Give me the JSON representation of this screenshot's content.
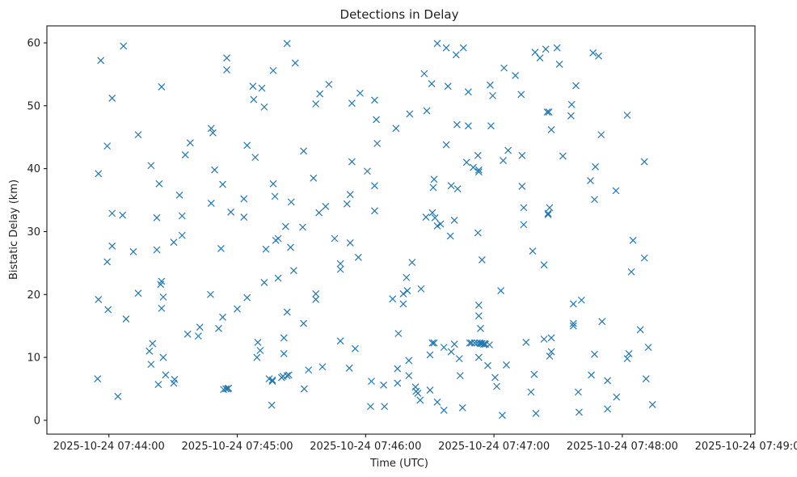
{
  "chart_data": {
    "type": "scatter",
    "title": "Detections in Delay",
    "xlabel": "Time (UTC)",
    "ylabel": "Bistatic Delay (km)",
    "marker": "x",
    "color": "#1f77b4",
    "x_unit": "seconds after 2025-10-24 07:44:00",
    "xlim": [
      -29,
      302
    ],
    "ylim": [
      -2.2,
      62.7
    ],
    "x_ticks": [
      {
        "value": 0,
        "label": "2025-10-24 07:44:00"
      },
      {
        "value": 60,
        "label": "2025-10-24 07:45:00"
      },
      {
        "value": 120,
        "label": "2025-10-24 07:46:00"
      },
      {
        "value": 180,
        "label": "2025-10-24 07:47:00"
      },
      {
        "value": 240,
        "label": "2025-10-24 07:48:00"
      },
      {
        "value": 300,
        "label": "2025-10-24 07:49:00"
      }
    ],
    "y_ticks": [
      {
        "value": 0,
        "label": "0"
      },
      {
        "value": 10,
        "label": "10"
      },
      {
        "value": 20,
        "label": "20"
      },
      {
        "value": 30,
        "label": "30"
      },
      {
        "value": 40,
        "label": "40"
      },
      {
        "value": 50,
        "label": "50"
      },
      {
        "value": 60,
        "label": "60"
      }
    ],
    "points": [
      [
        -5.3,
        6.6
      ],
      [
        -4.9,
        39.2
      ],
      [
        -4.9,
        19.2
      ],
      [
        -3.8,
        57.2
      ],
      [
        -0.4,
        17.6
      ],
      [
        -0.8,
        43.6
      ],
      [
        -0.8,
        25.2
      ],
      [
        1.5,
        51.2
      ],
      [
        1.5,
        32.9
      ],
      [
        1.5,
        27.7
      ],
      [
        4.2,
        3.8
      ],
      [
        6.8,
        59.5
      ],
      [
        6.4,
        32.6
      ],
      [
        8.0,
        16.1
      ],
      [
        11.4,
        26.8
      ],
      [
        13.7,
        45.4
      ],
      [
        13.7,
        20.2
      ],
      [
        18.9,
        11.0
      ],
      [
        19.7,
        40.5
      ],
      [
        19.7,
        8.9
      ],
      [
        20.4,
        12.2
      ],
      [
        22.4,
        32.2
      ],
      [
        22.4,
        27.1
      ],
      [
        23.1,
        5.7
      ],
      [
        23.5,
        37.6
      ],
      [
        24.2,
        21.6
      ],
      [
        24.6,
        53.0
      ],
      [
        24.6,
        22.1
      ],
      [
        24.6,
        17.8
      ],
      [
        25.4,
        19.6
      ],
      [
        25.4,
        10.0
      ],
      [
        26.5,
        7.2
      ],
      [
        30.3,
        5.9
      ],
      [
        30.3,
        28.3
      ],
      [
        30.7,
        6.5
      ],
      [
        33.0,
        35.8
      ],
      [
        34.2,
        32.5
      ],
      [
        34.2,
        29.4
      ],
      [
        35.7,
        42.2
      ],
      [
        36.8,
        13.7
      ],
      [
        38.0,
        44.1
      ],
      [
        41.8,
        13.4
      ],
      [
        42.5,
        14.8
      ],
      [
        47.5,
        20.0
      ],
      [
        47.8,
        46.4
      ],
      [
        47.8,
        34.5
      ],
      [
        48.6,
        45.7
      ],
      [
        49.4,
        39.8
      ],
      [
        51.3,
        14.6
      ],
      [
        52.4,
        27.3
      ],
      [
        53.2,
        37.5
      ],
      [
        53.2,
        16.4
      ],
      [
        53.6,
        4.9
      ],
      [
        54.7,
        5.0
      ],
      [
        55.1,
        57.6
      ],
      [
        55.1,
        55.7
      ],
      [
        55.5,
        5.0
      ],
      [
        55.9,
        5.1
      ],
      [
        57.0,
        33.1
      ],
      [
        60.0,
        17.7
      ],
      [
        63.1,
        35.2
      ],
      [
        63.1,
        32.3
      ],
      [
        64.6,
        43.7
      ],
      [
        64.6,
        19.5
      ],
      [
        67.3,
        53.1
      ],
      [
        67.7,
        51.0
      ],
      [
        68.4,
        41.8
      ],
      [
        69.2,
        10.0
      ],
      [
        69.6,
        12.4
      ],
      [
        70.7,
        11.1
      ],
      [
        71.5,
        52.8
      ],
      [
        72.6,
        21.9
      ],
      [
        72.6,
        49.8
      ],
      [
        73.4,
        27.2
      ],
      [
        74.9,
        6.6
      ],
      [
        76.1,
        2.4
      ],
      [
        76.4,
        6.4
      ],
      [
        76.4,
        6.2
      ],
      [
        76.8,
        37.6
      ],
      [
        76.8,
        55.6
      ],
      [
        77.6,
        35.6
      ],
      [
        78.0,
        28.6
      ],
      [
        79.1,
        28.9
      ],
      [
        79.1,
        22.6
      ],
      [
        80.7,
        6.8
      ],
      [
        81.4,
        7.0
      ],
      [
        81.8,
        13.1
      ],
      [
        81.8,
        10.6
      ],
      [
        82.6,
        30.8
      ],
      [
        83.3,
        17.2
      ],
      [
        83.3,
        7.1
      ],
      [
        83.3,
        59.9
      ],
      [
        84.1,
        7.2
      ],
      [
        84.9,
        27.5
      ],
      [
        85.2,
        34.7
      ],
      [
        86.4,
        23.8
      ],
      [
        87.1,
        56.8
      ],
      [
        90.6,
        30.7
      ],
      [
        91.0,
        42.8
      ],
      [
        91.0,
        15.4
      ],
      [
        91.3,
        5.0
      ],
      [
        93.3,
        8.0
      ],
      [
        95.6,
        38.5
      ],
      [
        96.7,
        50.3
      ],
      [
        96.7,
        20.1
      ],
      [
        96.7,
        19.2
      ],
      [
        98.2,
        33.0
      ],
      [
        98.6,
        51.9
      ],
      [
        99.8,
        8.5
      ],
      [
        101.3,
        34.0
      ],
      [
        102.8,
        53.4
      ],
      [
        105.5,
        28.9
      ],
      [
        108.2,
        24.9
      ],
      [
        108.2,
        12.6
      ],
      [
        108.2,
        24.0
      ],
      [
        111.3,
        34.4
      ],
      [
        112.4,
        8.3
      ],
      [
        112.8,
        28.2
      ],
      [
        112.8,
        35.9
      ],
      [
        113.6,
        41.1
      ],
      [
        113.6,
        50.4
      ],
      [
        115.1,
        11.4
      ],
      [
        116.6,
        25.9
      ],
      [
        117.4,
        52.0
      ],
      [
        120.8,
        39.6
      ],
      [
        122.3,
        2.2
      ],
      [
        122.7,
        6.2
      ],
      [
        124.2,
        50.9
      ],
      [
        124.2,
        37.3
      ],
      [
        124.2,
        33.3
      ],
      [
        125.0,
        47.8
      ],
      [
        125.4,
        44.0
      ],
      [
        128.4,
        5.6
      ],
      [
        128.8,
        2.2
      ],
      [
        132.6,
        19.3
      ],
      [
        134.2,
        46.4
      ],
      [
        134.9,
        8.2
      ],
      [
        134.9,
        5.9
      ],
      [
        135.3,
        13.8
      ],
      [
        137.6,
        20.1
      ],
      [
        137.6,
        18.5
      ],
      [
        139.1,
        22.7
      ],
      [
        139.5,
        20.6
      ],
      [
        140.2,
        9.5
      ],
      [
        140.2,
        7.1
      ],
      [
        140.6,
        48.7
      ],
      [
        141.7,
        25.1
      ],
      [
        143.3,
        5.3
      ],
      [
        143.6,
        4.6
      ],
      [
        144.4,
        4.3
      ],
      [
        145.5,
        3.2
      ],
      [
        145.9,
        20.9
      ],
      [
        147.4,
        55.1
      ],
      [
        148.2,
        32.3
      ],
      [
        148.6,
        49.2
      ],
      [
        150.1,
        10.4
      ],
      [
        150.1,
        4.8
      ],
      [
        150.9,
        53.5
      ],
      [
        151.2,
        33.0
      ],
      [
        151.2,
        12.3
      ],
      [
        151.6,
        37.0
      ],
      [
        152.0,
        38.3
      ],
      [
        152.0,
        12.3
      ],
      [
        152.4,
        32.2
      ],
      [
        153.5,
        2.9
      ],
      [
        153.5,
        59.9
      ],
      [
        153.5,
        30.9
      ],
      [
        155.0,
        31.2
      ],
      [
        156.6,
        11.6
      ],
      [
        156.6,
        1.6
      ],
      [
        157.7,
        43.8
      ],
      [
        157.7,
        59.2
      ],
      [
        158.5,
        53.1
      ],
      [
        159.6,
        29.3
      ],
      [
        160.0,
        10.9
      ],
      [
        160.0,
        37.3
      ],
      [
        161.5,
        31.8
      ],
      [
        161.5,
        12.1
      ],
      [
        162.3,
        58.1
      ],
      [
        162.7,
        47.0
      ],
      [
        163.0,
        36.8
      ],
      [
        163.8,
        9.8
      ],
      [
        164.2,
        7.1
      ],
      [
        165.3,
        2.0
      ],
      [
        165.7,
        59.2
      ],
      [
        167.2,
        41.0
      ],
      [
        168.0,
        52.2
      ],
      [
        168.0,
        46.8
      ],
      [
        168.7,
        12.3
      ],
      [
        169.5,
        12.3
      ],
      [
        170.3,
        40.2
      ],
      [
        171.0,
        12.3
      ],
      [
        172.2,
        12.3
      ],
      [
        172.5,
        42.1
      ],
      [
        172.5,
        29.8
      ],
      [
        172.9,
        39.8
      ],
      [
        172.9,
        39.5
      ],
      [
        172.9,
        18.3
      ],
      [
        172.9,
        16.6
      ],
      [
        172.9,
        10.0
      ],
      [
        173.3,
        12.3
      ],
      [
        173.7,
        14.6
      ],
      [
        173.7,
        12.2
      ],
      [
        174.4,
        25.5
      ],
      [
        174.4,
        12.2
      ],
      [
        175.2,
        12.1
      ],
      [
        175.6,
        12.2
      ],
      [
        176.0,
        12.1
      ],
      [
        177.1,
        8.7
      ],
      [
        177.9,
        12.0
      ],
      [
        178.2,
        53.3
      ],
      [
        178.6,
        46.8
      ],
      [
        179.4,
        51.6
      ],
      [
        180.5,
        6.8
      ],
      [
        181.3,
        5.4
      ],
      [
        183.2,
        20.6
      ],
      [
        183.9,
        0.8
      ],
      [
        184.3,
        41.3
      ],
      [
        184.7,
        56.0
      ],
      [
        185.8,
        8.8
      ],
      [
        186.6,
        42.9
      ],
      [
        190.0,
        54.8
      ],
      [
        192.7,
        51.8
      ],
      [
        193.1,
        42.1
      ],
      [
        193.1,
        37.2
      ],
      [
        193.9,
        33.8
      ],
      [
        193.9,
        31.1
      ],
      [
        195.0,
        12.4
      ],
      [
        197.3,
        4.5
      ],
      [
        198.1,
        26.9
      ],
      [
        198.8,
        7.3
      ],
      [
        199.2,
        58.5
      ],
      [
        199.6,
        1.1
      ],
      [
        201.5,
        57.6
      ],
      [
        203.4,
        24.7
      ],
      [
        203.4,
        12.9
      ],
      [
        204.2,
        59.0
      ],
      [
        204.9,
        49.0
      ],
      [
        205.3,
        32.9
      ],
      [
        205.3,
        32.7
      ],
      [
        205.7,
        49.0
      ],
      [
        206.0,
        33.8
      ],
      [
        206.0,
        10.2
      ],
      [
        206.8,
        46.2
      ],
      [
        206.8,
        13.1
      ],
      [
        206.8,
        10.9
      ],
      [
        209.5,
        59.2
      ],
      [
        210.6,
        56.6
      ],
      [
        212.2,
        42.0
      ],
      [
        216.0,
        48.4
      ],
      [
        216.3,
        50.2
      ],
      [
        217.1,
        15.4
      ],
      [
        217.1,
        18.5
      ],
      [
        217.1,
        15.0
      ],
      [
        218.3,
        53.2
      ],
      [
        219.4,
        4.5
      ],
      [
        219.8,
        1.3
      ],
      [
        220.9,
        19.1
      ],
      [
        225.1,
        38.1
      ],
      [
        225.5,
        7.2
      ],
      [
        226.3,
        58.4
      ],
      [
        227.0,
        10.5
      ],
      [
        227.0,
        35.1
      ],
      [
        227.4,
        40.3
      ],
      [
        228.9,
        57.9
      ],
      [
        230.1,
        45.4
      ],
      [
        230.5,
        15.7
      ],
      [
        233.1,
        6.3
      ],
      [
        233.1,
        1.8
      ],
      [
        237.0,
        36.5
      ],
      [
        237.3,
        3.7
      ],
      [
        242.3,
        48.5
      ],
      [
        242.3,
        9.8
      ],
      [
        243.1,
        10.6
      ],
      [
        244.2,
        23.6
      ],
      [
        245.0,
        28.6
      ],
      [
        248.4,
        14.4
      ],
      [
        250.3,
        41.1
      ],
      [
        250.3,
        25.8
      ],
      [
        251.1,
        6.6
      ],
      [
        252.2,
        11.6
      ],
      [
        254.1,
        2.5
      ]
    ]
  }
}
